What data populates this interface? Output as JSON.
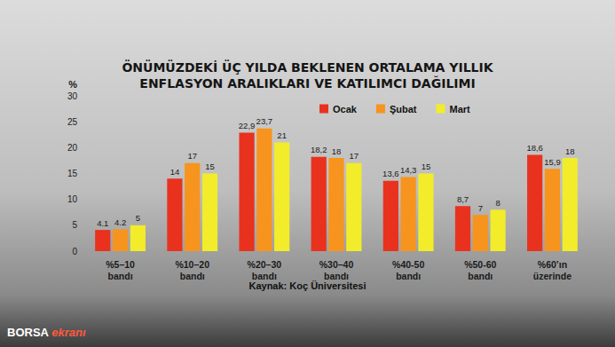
{
  "chart_data": {
    "type": "bar",
    "title": "ÖNÜMÜZDEKİ ÜÇ YILDA BEKLENEN ORTALAMA YILLIK\nENFLASYON ARALIKLARI VE KATILIMCI DAĞILIMI",
    "y_label": "%",
    "source": "Kaynak: Koç Üniversitesi",
    "logo": [
      "BORSA",
      "ekranı"
    ],
    "categories": [
      "%5–10\nbandı",
      "%10–20\nbandı",
      "%20–30\nbandı",
      "%30–40\nbandı",
      "%40-50\nbandı",
      "%50-60\nbandı",
      "%60’ın\nüzerinde"
    ],
    "series": [
      {
        "name": "Ocak",
        "color": "#e8321e",
        "values": [
          4.1,
          14,
          22.9,
          18.2,
          13.6,
          8.7,
          18.6
        ],
        "value_labels": [
          "4.1",
          "14",
          "22,9",
          "18,2",
          "13,6",
          "8,7",
          "18,6"
        ]
      },
      {
        "name": "Şubat",
        "color": "#f7941d",
        "values": [
          4.2,
          17,
          23.7,
          18,
          14.3,
          7,
          15.9
        ],
        "value_labels": [
          "4.2",
          "17",
          "23,7",
          "18",
          "14,3",
          "7",
          "15,9"
        ]
      },
      {
        "name": "Mart",
        "color": "#f2ec2a",
        "values": [
          5,
          15,
          21,
          17,
          15,
          8,
          18
        ]
      }
    ],
    "ylim": [
      0,
      30
    ],
    "yticks": [
      0,
      5,
      10,
      15,
      20,
      25,
      30
    ],
    "grid": false,
    "legend": "upper right",
    "data_labels": true
  }
}
